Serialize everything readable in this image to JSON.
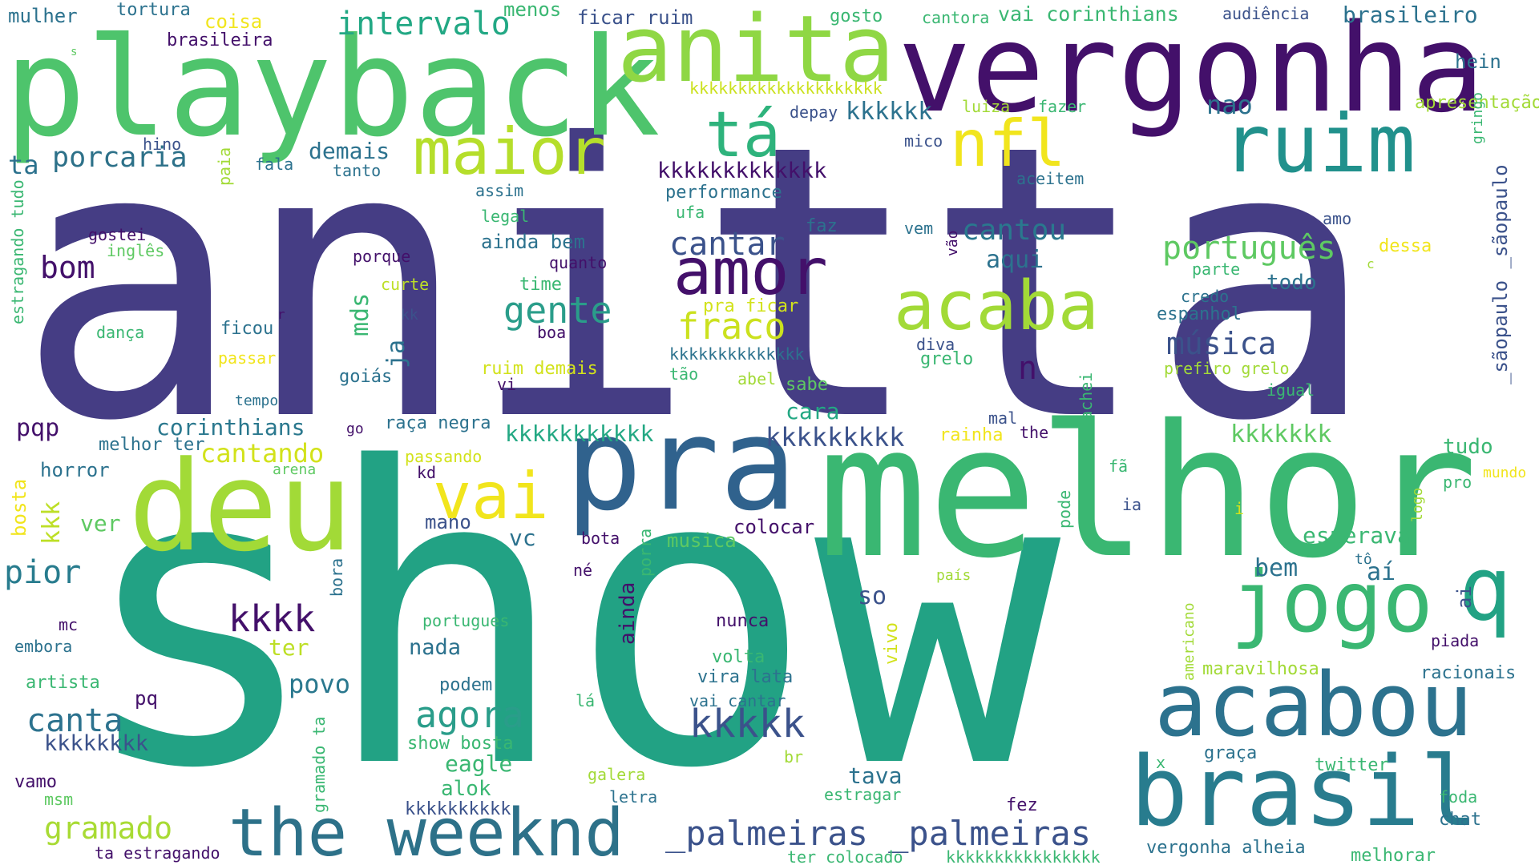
{
  "words": [
    {
      "text": "anitta",
      "color": "#453d84"
    },
    {
      "text": "show",
      "color": "#22a284"
    },
    {
      "text": "melhor",
      "color": "#3ab772"
    },
    {
      "text": "playback",
      "color": "#4ec46c"
    },
    {
      "text": "vergonha",
      "color": "#43106a"
    },
    {
      "text": "anita",
      "color": "#8fd744"
    },
    {
      "text": "pra",
      "color": "#30628d"
    },
    {
      "text": "deu",
      "color": "#a2da37"
    },
    {
      "text": "acabou",
      "color": "#2c728e"
    },
    {
      "text": "brasil",
      "color": "#287c8e"
    },
    {
      "text": "the weeknd",
      "color": "#2d7189"
    },
    {
      "text": "ruim",
      "color": "#21918c"
    },
    {
      "text": "jogo",
      "color": "#3ab772"
    },
    {
      "text": "maior",
      "color": "#b5de2b"
    },
    {
      "text": "amor",
      "color": "#43106a"
    },
    {
      "text": "acaba",
      "color": "#a2da37"
    },
    {
      "text": "q",
      "color": "#22a284"
    },
    {
      "text": "tá",
      "color": "#2eb37c"
    },
    {
      "text": "nfl",
      "color": "#f1e51d"
    },
    {
      "text": "vai",
      "color": "#f1e51d"
    },
    {
      "text": "_palmeiras _palmeiras",
      "color": "#3b528b"
    },
    {
      "text": "intervalo",
      "color": "#22a884"
    },
    {
      "text": "porcaria",
      "color": "#2d7189"
    },
    {
      "text": "português",
      "color": "#5ec962"
    },
    {
      "text": "gente",
      "color": "#2a9d8a"
    },
    {
      "text": "cantar",
      "color": "#3b528b"
    },
    {
      "text": "fraco",
      "color": "#cbe11e"
    },
    {
      "text": "cantou",
      "color": "#2a788e"
    },
    {
      "text": "música",
      "color": "#3b528b"
    },
    {
      "text": "agora",
      "color": "#2a9d8a"
    },
    {
      "text": "kkkkk",
      "color": "#3b528b"
    },
    {
      "text": "bom",
      "color": "#43106a"
    },
    {
      "text": "kkkk",
      "color": "#43106a"
    },
    {
      "text": "pior",
      "color": "#287c8e"
    },
    {
      "text": "canta",
      "color": "#2c728e"
    },
    {
      "text": "gramado",
      "color": "#a8db34"
    },
    {
      "text": "cantando",
      "color": "#d2e21b"
    },
    {
      "text": "corinthians",
      "color": "#2a788e"
    },
    {
      "text": "vai corinthians",
      "color": "#3ab772"
    },
    {
      "text": "brasileiro",
      "color": "#2c728e"
    },
    {
      "text": "kkkkkkkkk",
      "color": "#3b528b"
    },
    {
      "text": "kkkkkkkkkkk",
      "color": "#23a883"
    },
    {
      "text": "kkkkkkk",
      "color": "#5ec962"
    },
    {
      "text": "kkkkkk",
      "color": "#2c728e"
    },
    {
      "text": "kkkkkkkkkkkkk",
      "color": "#43106a"
    },
    {
      "text": "kkkkkkkk",
      "color": "#3b528b"
    },
    {
      "text": "kkkkkkkkkk",
      "color": "#3b528b"
    },
    {
      "text": "kkkkkkkkkkkkkkkkkkkk",
      "color": "#cbe11e"
    },
    {
      "text": "kkkkkkkkkkkkkk",
      "color": "#2c728e"
    },
    {
      "text": "kkkkkkkkkkkkkkkk",
      "color": "#3ab772"
    },
    {
      "text": "aqui",
      "color": "#2c728e"
    },
    {
      "text": "nao",
      "color": "#2c728e"
    },
    {
      "text": "bem",
      "color": "#2c728e"
    },
    {
      "text": "aí",
      "color": "#2c728e"
    },
    {
      "text": "tudo",
      "color": "#3ab772"
    },
    {
      "text": "todo",
      "color": "#2c728e"
    },
    {
      "text": "demais",
      "color": "#2c728e"
    },
    {
      "text": "ta",
      "color": "#2c728e"
    },
    {
      "text": "mds",
      "color": "#3ab772"
    },
    {
      "text": "ja",
      "color": "#2c728e"
    },
    {
      "text": "n",
      "color": "#43106a"
    },
    {
      "text": "pqp",
      "color": "#43106a"
    },
    {
      "text": "cara",
      "color": "#23a883"
    },
    {
      "text": "so",
      "color": "#3b528b"
    },
    {
      "text": "povo",
      "color": "#2a788e"
    },
    {
      "text": "ter",
      "color": "#bddf26"
    },
    {
      "text": "nada",
      "color": "#2c728e"
    },
    {
      "text": "vc",
      "color": "#2c728e"
    },
    {
      "text": "ver",
      "color": "#5ec962"
    },
    {
      "text": "kkk",
      "color": "#bddf26"
    },
    {
      "text": "esperava",
      "color": "#3ab772"
    },
    {
      "text": "tava",
      "color": "#2c728e"
    },
    {
      "text": "mulher",
      "color": "#2c728e"
    },
    {
      "text": "tortura",
      "color": "#2c728e"
    },
    {
      "text": "coisa",
      "color": "#f1e51d"
    },
    {
      "text": "menos",
      "color": "#3ab772"
    },
    {
      "text": "ficar ruim",
      "color": "#3b528b"
    },
    {
      "text": "gosto",
      "color": "#3ab772"
    },
    {
      "text": "cantora",
      "color": "#3ab772"
    },
    {
      "text": "audiência",
      "color": "#3b528b"
    },
    {
      "text": "brasileira",
      "color": "#43106a"
    },
    {
      "text": "hein",
      "color": "#2c728e"
    },
    {
      "text": "apresentação",
      "color": "#a2da37"
    },
    {
      "text": "depay",
      "color": "#3b528b"
    },
    {
      "text": "luiza",
      "color": "#a2da37"
    },
    {
      "text": "fazer",
      "color": "#3ab772"
    },
    {
      "text": "hino",
      "color": "#3b528b"
    },
    {
      "text": "tortura",
      "color": "#2c728e"
    },
    {
      "text": "fala",
      "color": "#2c728e"
    },
    {
      "text": "tanto",
      "color": "#2c728e"
    },
    {
      "text": "mico",
      "color": "#3b528b"
    },
    {
      "text": "aceitem",
      "color": "#2c728e"
    },
    {
      "text": "performance",
      "color": "#2c728e"
    },
    {
      "text": "assim",
      "color": "#2c728e"
    },
    {
      "text": "ufa",
      "color": "#3ab772"
    },
    {
      "text": "legal",
      "color": "#3ab772"
    },
    {
      "text": "gostei",
      "color": "#43106a"
    },
    {
      "text": "inglês",
      "color": "#5ec962"
    },
    {
      "text": "faz",
      "color": "#2c728e"
    },
    {
      "text": "vem",
      "color": "#2c728e"
    },
    {
      "text": "ainda bem",
      "color": "#2c728e"
    },
    {
      "text": "porque",
      "color": "#43106a"
    },
    {
      "text": "quanto",
      "color": "#43106a"
    },
    {
      "text": "curte",
      "color": "#bddf26"
    },
    {
      "text": "time",
      "color": "#3ab772"
    },
    {
      "text": "pra ficar",
      "color": "#d2e21b"
    },
    {
      "text": "dessa",
      "color": "#f1e51d"
    },
    {
      "text": "parte",
      "color": "#3ab772"
    },
    {
      "text": "credo",
      "color": "#2c728e"
    },
    {
      "text": "espanhol",
      "color": "#2c728e"
    },
    {
      "text": "amo",
      "color": "#3b528b"
    },
    {
      "text": "ficou",
      "color": "#2c728e"
    },
    {
      "text": "kk",
      "color": "#3b528b"
    },
    {
      "text": "boa",
      "color": "#43106a"
    },
    {
      "text": "dança",
      "color": "#3ab772"
    },
    {
      "text": "passar",
      "color": "#f1e51d"
    },
    {
      "text": "diva",
      "color": "#3b528b"
    },
    {
      "text": "grelo",
      "color": "#3ab772"
    },
    {
      "text": "goiás",
      "color": "#2c728e"
    },
    {
      "text": "ruim demais",
      "color": "#d2e21b"
    },
    {
      "text": "tão",
      "color": "#3ab772"
    },
    {
      "text": "abel",
      "color": "#a2da37"
    },
    {
      "text": "sabe",
      "color": "#5ec962"
    },
    {
      "text": "vi",
      "color": "#43106a"
    },
    {
      "text": "prefiro grelo",
      "color": "#a2da37"
    },
    {
      "text": "igual",
      "color": "#3ab772"
    },
    {
      "text": "tempo",
      "color": "#2c728e"
    },
    {
      "text": "mal",
      "color": "#3b528b"
    },
    {
      "text": "go",
      "color": "#43106a"
    },
    {
      "text": "raça negra",
      "color": "#2c728e"
    },
    {
      "text": "the",
      "color": "#43106a"
    },
    {
      "text": "rainha",
      "color": "#f1e51d"
    },
    {
      "text": "melhor ter",
      "color": "#2c728e"
    },
    {
      "text": "horror",
      "color": "#2c728e"
    },
    {
      "text": "passando",
      "color": "#d2e21b"
    },
    {
      "text": "arena",
      "color": "#5ec962"
    },
    {
      "text": "kd",
      "color": "#43106a"
    },
    {
      "text": "fã",
      "color": "#3ab772"
    },
    {
      "text": "pro",
      "color": "#3ab772"
    },
    {
      "text": "mundo",
      "color": "#f1e51d"
    },
    {
      "text": "ia",
      "color": "#3b528b"
    },
    {
      "text": "i",
      "color": "#d2e21b"
    },
    {
      "text": "bosta",
      "color": "#f1e51d"
    },
    {
      "text": "mano",
      "color": "#3b528b"
    },
    {
      "text": "bota",
      "color": "#43106a"
    },
    {
      "text": "musica",
      "color": "#5ec962"
    },
    {
      "text": "colocar",
      "color": "#43106a"
    },
    {
      "text": "né",
      "color": "#43106a"
    },
    {
      "text": "país",
      "color": "#a2da37"
    },
    {
      "text": "tô",
      "color": "#2c728e"
    },
    {
      "text": "mc",
      "color": "#43106a"
    },
    {
      "text": "embora",
      "color": "#2c728e"
    },
    {
      "text": "portugues",
      "color": "#3ab772"
    },
    {
      "text": "nunca",
      "color": "#43106a"
    },
    {
      "text": "piada",
      "color": "#43106a"
    },
    {
      "text": "artista",
      "color": "#3ab772"
    },
    {
      "text": "pq",
      "color": "#43106a"
    },
    {
      "text": "podem",
      "color": "#2c728e"
    },
    {
      "text": "volta",
      "color": "#3ab772"
    },
    {
      "text": "vira lata",
      "color": "#2c728e"
    },
    {
      "text": "maravilhosa",
      "color": "#a2da37"
    },
    {
      "text": "racionais",
      "color": "#2c728e"
    },
    {
      "text": "lá",
      "color": "#3ab772"
    },
    {
      "text": "vai cantar",
      "color": "#2c728e"
    },
    {
      "text": "show bosta",
      "color": "#3ab772"
    },
    {
      "text": "eagle",
      "color": "#3ab772"
    },
    {
      "text": "br",
      "color": "#a2da37"
    },
    {
      "text": "graça",
      "color": "#2c728e"
    },
    {
      "text": "x",
      "color": "#3ab772"
    },
    {
      "text": "twitter",
      "color": "#3ab772"
    },
    {
      "text": "vamo",
      "color": "#43106a"
    },
    {
      "text": "msm",
      "color": "#5ec962"
    },
    {
      "text": "alok",
      "color": "#3ab772"
    },
    {
      "text": "galera",
      "color": "#a2da37"
    },
    {
      "text": "letra",
      "color": "#2c728e"
    },
    {
      "text": "estragar",
      "color": "#3ab772"
    },
    {
      "text": "fez",
      "color": "#43106a"
    },
    {
      "text": "foda",
      "color": "#3ab772"
    },
    {
      "text": "chat",
      "color": "#2c728e"
    },
    {
      "text": "vergonha alheia",
      "color": "#2c728e"
    },
    {
      "text": "melhorar",
      "color": "#3ab772"
    },
    {
      "text": "ta estragando",
      "color": "#43106a"
    },
    {
      "text": "ter colocado",
      "color": "#3ab772"
    },
    {
      "text": "s",
      "color": "#5ec962"
    },
    {
      "text": "estragando tudo",
      "color": "#3ab772"
    },
    {
      "text": "paia",
      "color": "#a2da37"
    },
    {
      "text": "r",
      "color": "#43106a"
    },
    {
      "text": "c",
      "color": "#a2da37"
    },
    {
      "text": "gringo",
      "color": "#3ab772"
    },
    {
      "text": "_sãopaulo _sãopaulo",
      "color": "#3b528b"
    },
    {
      "text": "vão",
      "color": "#43106a"
    },
    {
      "text": "achei",
      "color": "#3ab772"
    },
    {
      "text": "pode",
      "color": "#3ab772"
    },
    {
      "text": "logo",
      "color": "#a2da37"
    },
    {
      "text": "ai",
      "color": "#3b528b"
    },
    {
      "text": "americano",
      "color": "#a2da37"
    },
    {
      "text": "porra",
      "color": "#3ab772"
    },
    {
      "text": "ainda",
      "color": "#43106a"
    },
    {
      "text": "bora",
      "color": "#2c728e"
    },
    {
      "text": "vivo",
      "color": "#d2e21b"
    },
    {
      "text": "gramado ta",
      "color": "#3ab772"
    }
  ]
}
